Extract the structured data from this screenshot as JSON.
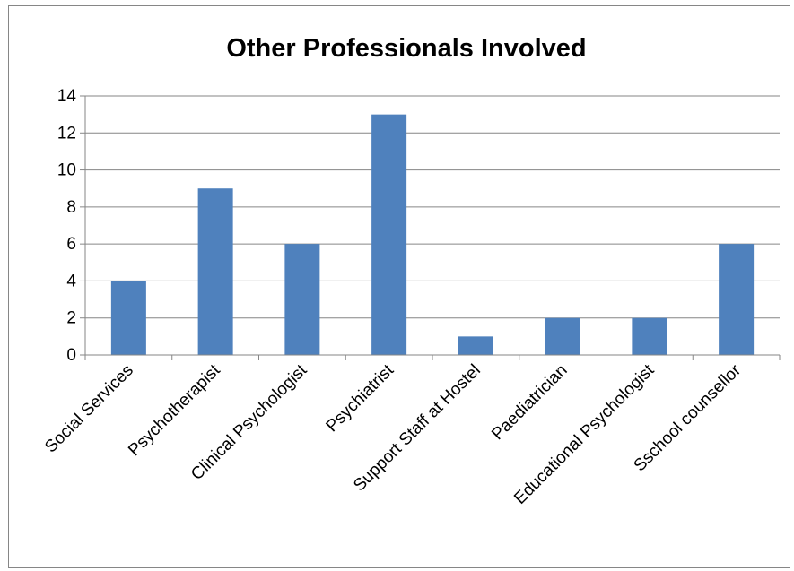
{
  "chart_data": {
    "type": "bar",
    "title": "Other Professionals Involved",
    "categories": [
      "Social Services",
      "Psychotherapist",
      "Clinical Psychologist",
      "Psychiatrist",
      "Support Staff at Hostel",
      "Paediatrician",
      "Educational Psychologist",
      "Sschool counsellor"
    ],
    "values": [
      4,
      9,
      6,
      13,
      1,
      2,
      2,
      6
    ],
    "ylim": [
      0,
      14
    ],
    "yticks": [
      "0",
      "2",
      "4",
      "6",
      "8",
      "10",
      "12",
      "14"
    ],
    "grid": true,
    "legend": "none",
    "bar_color": "#4f81bd",
    "grid_color": "#868686"
  }
}
